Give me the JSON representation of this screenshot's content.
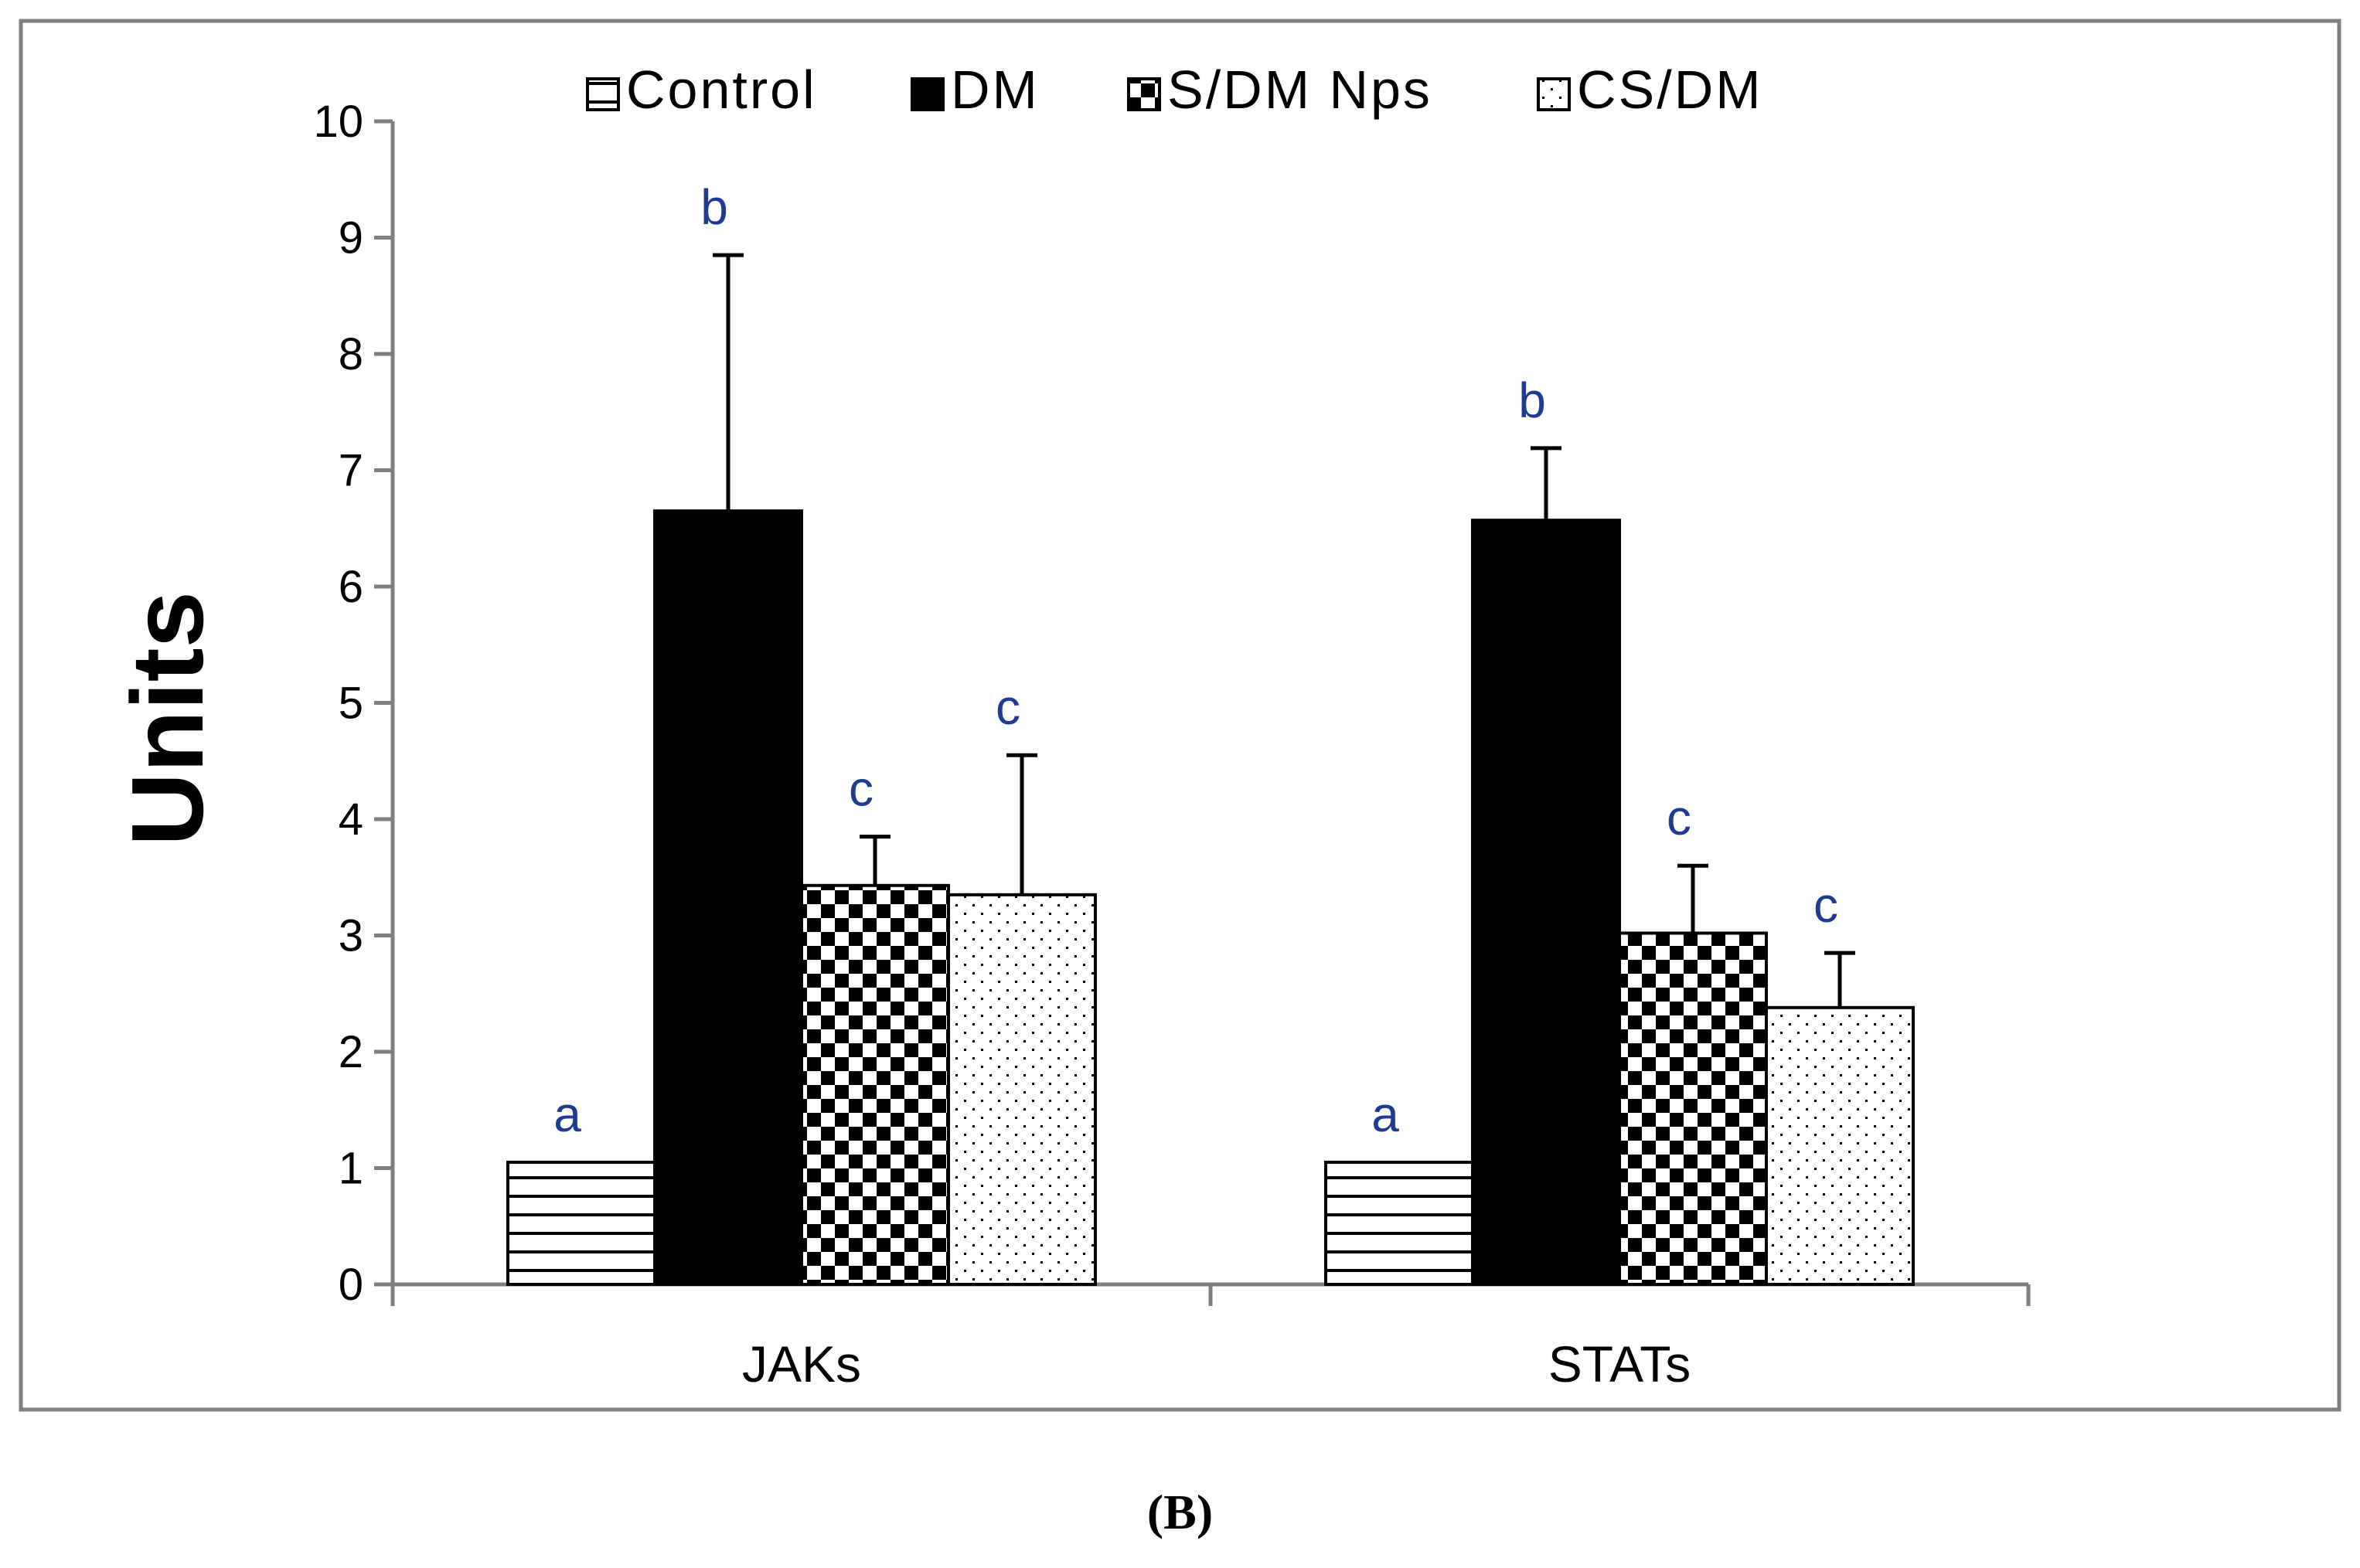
{
  "chart_data": {
    "type": "bar",
    "title": "",
    "xlabel": "",
    "ylabel": "Units",
    "ylim": [
      0,
      10
    ],
    "yticks": [
      "0",
      "1",
      "2",
      "3",
      "4",
      "5",
      "6",
      "7",
      "8",
      "9",
      "10"
    ],
    "categories": [
      "JAKs",
      "STATs"
    ],
    "legend_position": "top",
    "series": [
      {
        "name": "Control",
        "pattern": "horizontal-lines",
        "values": [
          1.05,
          1.05
        ],
        "errors": [
          0.0,
          0.0
        ],
        "letters": [
          "a",
          "a"
        ]
      },
      {
        "name": "DM",
        "pattern": "solid-black",
        "values": [
          6.65,
          6.57
        ],
        "errors": [
          2.2,
          0.62
        ],
        "letters": [
          "b",
          "b"
        ]
      },
      {
        "name": "S/DM Nps",
        "pattern": "checkerboard",
        "values": [
          3.43,
          3.02
        ],
        "errors": [
          0.42,
          0.58
        ],
        "letters": [
          "c",
          "c"
        ]
      },
      {
        "name": "CS/DM",
        "pattern": "dots",
        "values": [
          3.35,
          2.38
        ],
        "errors": [
          1.2,
          0.47
        ],
        "letters": [
          "c",
          "c"
        ]
      }
    ],
    "colors": {
      "axis": "#7f7f7f",
      "frame": "#7f7f7f",
      "bar_outline": "#000000",
      "letter": "#1f3a93",
      "fill_dark": "#000000",
      "fill_light": "#ffffff"
    }
  },
  "caption": "(B)"
}
